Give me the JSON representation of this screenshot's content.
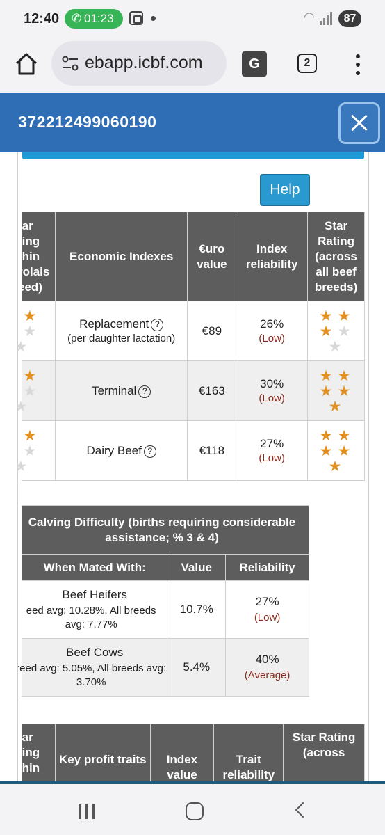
{
  "status_bar": {
    "time": "12:40",
    "call_timer": "01:23",
    "battery": "87"
  },
  "browser": {
    "url": "ebapp.icbf.com",
    "tab_count": "2",
    "translate_label": "G"
  },
  "header": {
    "title": "372212499060190"
  },
  "help_label": "Help",
  "economic_table": {
    "headers": [
      "tar ting thin rolais eed)",
      "Economic Indexes",
      "€uro value",
      "Index reliability",
      "Star Rating (across all beef breeds)"
    ],
    "rows": [
      {
        "name": "Replacement",
        "sub": "(per daughter lactation)",
        "value": "€89",
        "reliability": "26%",
        "level": "(Low)",
        "stars_all": 3,
        "stars_breed": 2.5
      },
      {
        "name": "Terminal",
        "sub": "",
        "value": "€163",
        "reliability": "30%",
        "level": "(Low)",
        "stars_all": 5,
        "stars_breed": 3
      },
      {
        "name": "Dairy Beef",
        "sub": "",
        "value": "€118",
        "reliability": "27%",
        "level": "(Low)",
        "stars_all": 5,
        "stars_breed": 3
      }
    ]
  },
  "calving_table": {
    "caption": "Calving Difficulty (births requiring considerable assistance; % 3 & 4)",
    "headers": [
      "When Mated With:",
      "Value",
      "Reliability"
    ],
    "rows": [
      {
        "name": "Beef Heifers",
        "sub": "eed avg: 10.28%, All breeds avg: 7.77%",
        "value": "10.7%",
        "reliability": "27%",
        "level": "(Low)"
      },
      {
        "name": "Beef Cows",
        "sub": "reed avg: 5.05%, All breeds avg: 3.70%",
        "value": "5.4%",
        "reliability": "40%",
        "level": "(Average)"
      }
    ]
  },
  "profit_table": {
    "headers": [
      "tar ting thin",
      "Key profit traits",
      "Index value",
      "Trait reliability",
      "Star Rating (across"
    ]
  },
  "colors": {
    "header_blue": "#2f6db5",
    "table_header": "#5d5d5d",
    "star": "#e3901e",
    "accent": "#1c9bd6"
  }
}
